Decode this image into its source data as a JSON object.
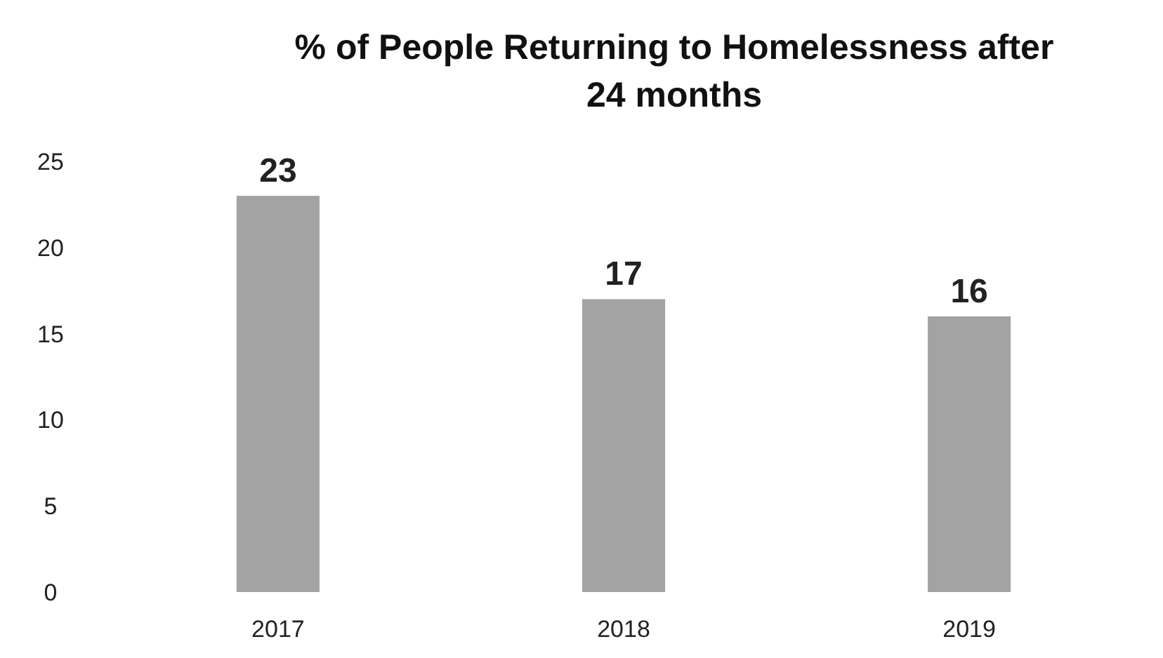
{
  "chart_data": {
    "type": "bar",
    "title": "% of People Returning to Homelessness after 24 months",
    "categories": [
      "2017",
      "2018",
      "2019"
    ],
    "values": [
      23,
      17,
      16
    ],
    "color": "#a3a3a3",
    "ylim": [
      0,
      25
    ],
    "yticks": [
      0,
      5,
      10,
      15,
      20,
      25
    ],
    "data_labels": true,
    "grid": false
  }
}
